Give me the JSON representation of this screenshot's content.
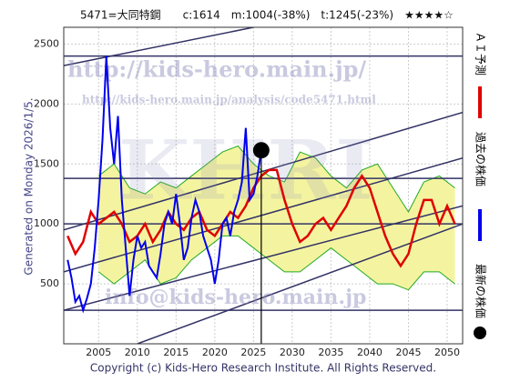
{
  "chart_data": {
    "type": "line",
    "title": "5471=大同特鋼　　c:1614　m:1004(-38%)　t:1245(-23%)　★★★★☆",
    "side_note": "Generated on Monday 2026/1/5.",
    "footer": "Copyright (c) Kids-Hero Research Institute. All Rights Reserved.",
    "watermarks": [
      "http://kids-hero.main.jp/",
      "http://kids-hero.main.jp/analysis/code5471.html",
      "info@kids-hero.main.jp",
      "KHRI"
    ],
    "xlim": [
      2000.5,
      2052
    ],
    "ylim": [
      0,
      2640
    ],
    "xticks": [
      2005,
      2010,
      2015,
      2020,
      2025,
      2030,
      2035,
      2040,
      2045,
      2050
    ],
    "yticks": [
      500,
      1000,
      1500,
      2000,
      2500
    ],
    "grid": true,
    "series": [
      {
        "name": "ＡＩ予測",
        "color": "#e00000",
        "x": [
          2001,
          2002,
          2003,
          2004,
          2005,
          2006,
          2007,
          2008,
          2009,
          2010,
          2011,
          2012,
          2013,
          2014,
          2015,
          2016,
          2017,
          2018,
          2019,
          2020,
          2021,
          2022,
          2023,
          2024,
          2025,
          2026,
          2027,
          2028,
          2029,
          2030,
          2031,
          2032,
          2033,
          2034,
          2035,
          2036,
          2037,
          2038,
          2039,
          2040,
          2041,
          2042,
          2043,
          2044,
          2045,
          2046,
          2047,
          2048,
          2049,
          2050,
          2051
        ],
        "values": [
          900,
          750,
          850,
          1100,
          1000,
          1050,
          1100,
          1000,
          850,
          900,
          1000,
          850,
          950,
          1100,
          1000,
          950,
          1050,
          1100,
          950,
          900,
          1000,
          1100,
          1050,
          1150,
          1300,
          1400,
          1450,
          1450,
          1200,
          1000,
          850,
          900,
          1000,
          1050,
          950,
          1050,
          1150,
          1300,
          1400,
          1300,
          1100,
          900,
          750,
          650,
          750,
          1000,
          1200,
          1200,
          1000,
          1150,
          1000
        ]
      },
      {
        "name": "過去の株価",
        "color": "#0000ee",
        "x": [
          2001,
          2001.5,
          2002,
          2002.5,
          2003,
          2003.5,
          2004,
          2004.5,
          2005,
          2005.5,
          2006,
          2006.5,
          2007,
          2007.5,
          2008,
          2008.5,
          2009,
          2009.5,
          2010,
          2010.5,
          2011,
          2011.5,
          2012,
          2012.5,
          2013,
          2013.5,
          2014,
          2014.5,
          2015,
          2015.5,
          2016,
          2016.5,
          2017,
          2017.5,
          2018,
          2018.5,
          2019,
          2019.5,
          2020,
          2020.5,
          2021,
          2021.5,
          2022,
          2022.5,
          2023,
          2023.5,
          2024,
          2024.5,
          2025,
          2025.5,
          2026
        ],
        "values": [
          700,
          550,
          350,
          400,
          280,
          380,
          500,
          800,
          1200,
          1700,
          2400,
          1800,
          1500,
          1900,
          1200,
          800,
          400,
          700,
          900,
          800,
          850,
          650,
          600,
          550,
          750,
          1000,
          1100,
          1000,
          1250,
          1000,
          700,
          800,
          1050,
          1200,
          1100,
          900,
          800,
          700,
          500,
          700,
          1000,
          1050,
          900,
          1100,
          1200,
          1350,
          1800,
          1200,
          1250,
          1400,
          1614
        ]
      },
      {
        "name": "最新の株価",
        "color": "#000000",
        "x": [
          2026
        ],
        "values": [
          1614
        ]
      }
    ],
    "band": {
      "color": "#f4f4a0",
      "edge": "#22aa22",
      "x": [
        2005,
        2007,
        2009,
        2011,
        2013,
        2015,
        2017,
        2019,
        2021,
        2023,
        2025,
        2027,
        2029,
        2031,
        2033,
        2035,
        2037,
        2039,
        2041,
        2043,
        2045,
        2047,
        2049,
        2051
      ],
      "upper": [
        1400,
        1500,
        1300,
        1250,
        1350,
        1300,
        1400,
        1500,
        1600,
        1650,
        1500,
        1400,
        1350,
        1600,
        1550,
        1400,
        1300,
        1450,
        1500,
        1300,
        1100,
        1350,
        1400,
        1300
      ],
      "lower": [
        600,
        500,
        600,
        700,
        500,
        550,
        700,
        800,
        900,
        900,
        800,
        700,
        600,
        600,
        700,
        800,
        700,
        600,
        500,
        500,
        450,
        600,
        600,
        500
      ]
    },
    "reference_lines": {
      "color": "#333366",
      "values": [
        2400,
        1380,
        1000,
        280
      ]
    },
    "trend_lines": {
      "color": "#333366",
      "lines": [
        {
          "x": [
            2000.5,
            2025
          ],
          "y": [
            2320,
            2640
          ]
        },
        {
          "x": [
            2000.5,
            2052
          ],
          "y": [
            950,
            1930
          ]
        },
        {
          "x": [
            2000.5,
            2052
          ],
          "y": [
            600,
            1550
          ]
        },
        {
          "x": [
            2000.5,
            2052
          ],
          "y": [
            280,
            1150
          ]
        },
        {
          "x": [
            2010,
            2052
          ],
          "y": [
            0,
            1000
          ]
        }
      ]
    }
  }
}
